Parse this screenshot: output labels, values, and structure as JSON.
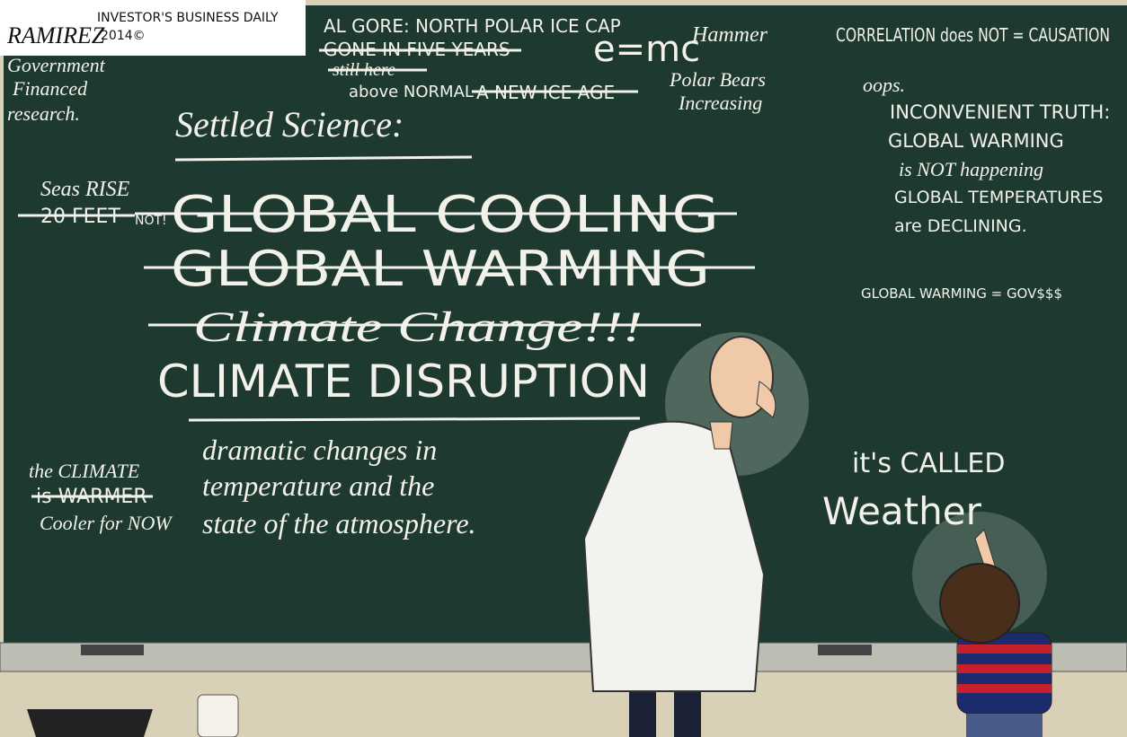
{
  "signature": {
    "artist": "RAMIREZ",
    "publication": "INVESTOR'S BUSINESS DAILY",
    "year": "2014©"
  },
  "top_notes": {
    "gore": "AL GORE: NORTH POLAR ICE CAP",
    "gone": "GONE IN FIVE YEARS",
    "still": "still here",
    "above": "above NORMAL",
    "ice_age": "A NEW ICE AGE",
    "emc": "e=mc",
    "hammer": "Hammer",
    "bears_1": "Polar Bears",
    "bears_2": "Increasing"
  },
  "left_notes": {
    "gov_1": "Government",
    "gov_2": "Financed",
    "gov_3": "research.",
    "seas_1": "Seas RISE",
    "seas_2": "20 FEET",
    "not": "NOT!",
    "climate_1": "the CLIMATE",
    "climate_2": "is WARMER",
    "climate_3": "Cooler for NOW"
  },
  "right_notes": {
    "correlation": "CORRELATION does NOT = CAUSATION",
    "oops": "oops.",
    "truth_1": "INCONVENIENT TRUTH:",
    "truth_2": "GLOBAL WARMING",
    "truth_3": "is NOT happening",
    "truth_4": "GLOBAL TEMPERATURES",
    "truth_5": "are DECLINING.",
    "gov": "GLOBAL WARMING = GOV$$$"
  },
  "main": {
    "heading": "Settled Science:",
    "terms": [
      "GLOBAL COOLING",
      "GLOBAL WARMING",
      "Climate Change!!!",
      "CLIMATE DISRUPTION"
    ],
    "definition": [
      "dramatic changes in",
      "temperature and the",
      "state of the atmosphere."
    ]
  },
  "child": {
    "line_1": "it's CALLED",
    "line_2": "Weather"
  }
}
